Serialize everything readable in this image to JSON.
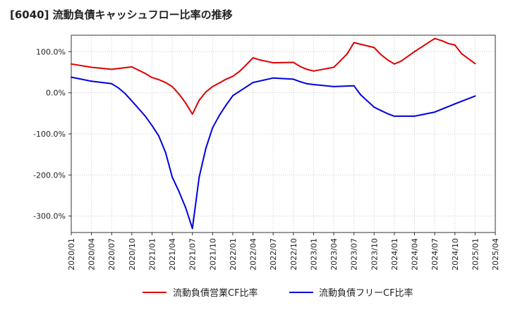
{
  "chart_data": {
    "type": "line",
    "title": "[6040]  流動負債キャッシュフロー比率の推移",
    "xlabel": "",
    "ylabel": "",
    "ylim": [
      -340,
      140
    ],
    "yticks": [
      100,
      0,
      -100,
      -200,
      -300
    ],
    "ytick_labels": [
      "100.0%",
      "0.0%",
      "-100.0%",
      "-200.0%",
      "-300.0%"
    ],
    "x_ticks": [
      "2020/01",
      "2020/04",
      "2020/07",
      "2020/10",
      "2021/01",
      "2021/04",
      "2021/07",
      "2021/10",
      "2022/01",
      "2022/04",
      "2022/07",
      "2022/10",
      "2023/01",
      "2023/04",
      "2023/07",
      "2023/10",
      "2024/01",
      "2024/04",
      "2024/07",
      "2024/10",
      "2025/01",
      "2025/04"
    ],
    "grid": true,
    "legend_position": "bottom",
    "series": [
      {
        "name": "流動負債営業CF比率",
        "color": "#dd0000",
        "x": [
          "2020/01",
          "2020/04",
          "2020/07",
          "2020/10",
          "2020/11",
          "2020/12",
          "2021/01",
          "2021/02",
          "2021/03",
          "2021/04",
          "2021/05",
          "2021/06",
          "2021/07",
          "2021/08",
          "2021/09",
          "2021/10",
          "2021/11",
          "2021/12",
          "2022/01",
          "2022/02",
          "2022/03",
          "2022/04",
          "2022/05",
          "2022/07",
          "2022/10",
          "2022/11",
          "2022/12",
          "2023/01",
          "2023/04",
          "2023/05",
          "2023/06",
          "2023/07",
          "2023/10",
          "2023/11",
          "2023/12",
          "2024/01",
          "2024/02",
          "2024/04",
          "2024/07",
          "2024/08",
          "2024/09",
          "2024/10",
          "2024/11",
          "2025/01"
        ],
        "values": [
          70,
          62,
          57,
          63,
          55,
          47,
          37,
          32,
          25,
          15,
          -3,
          -25,
          -52,
          -18,
          2,
          15,
          24,
          33,
          40,
          52,
          68,
          85,
          80,
          73,
          74,
          64,
          57,
          53,
          62,
          78,
          95,
          122,
          110,
          93,
          80,
          70,
          77,
          100,
          132,
          127,
          120,
          116,
          95,
          71
        ]
      },
      {
        "name": "流動負債フリーCF比率",
        "color": "#0000dd",
        "x": [
          "2020/01",
          "2020/04",
          "2020/07",
          "2020/08",
          "2020/09",
          "2020/10",
          "2020/12",
          "2021/01",
          "2021/02",
          "2021/03",
          "2021/04",
          "2021/05",
          "2021/06",
          "2021/07",
          "2021/08",
          "2021/09",
          "2021/10",
          "2021/11",
          "2021/12",
          "2022/01",
          "2022/04",
          "2022/07",
          "2022/10",
          "2022/11",
          "2022/12",
          "2023/01",
          "2023/04",
          "2023/07",
          "2023/08",
          "2023/09",
          "2023/10",
          "2023/11",
          "2023/12",
          "2024/01",
          "2024/04",
          "2024/07",
          "2024/10",
          "2025/01"
        ],
        "values": [
          38,
          28,
          22,
          12,
          -2,
          -20,
          -57,
          -80,
          -105,
          -145,
          -205,
          -240,
          -280,
          -330,
          -205,
          -135,
          -85,
          -55,
          -30,
          -7,
          25,
          36,
          33,
          27,
          22,
          20,
          15,
          17,
          -5,
          -20,
          -35,
          -43,
          -51,
          -57,
          -57,
          -47,
          -27,
          -8
        ]
      }
    ]
  }
}
